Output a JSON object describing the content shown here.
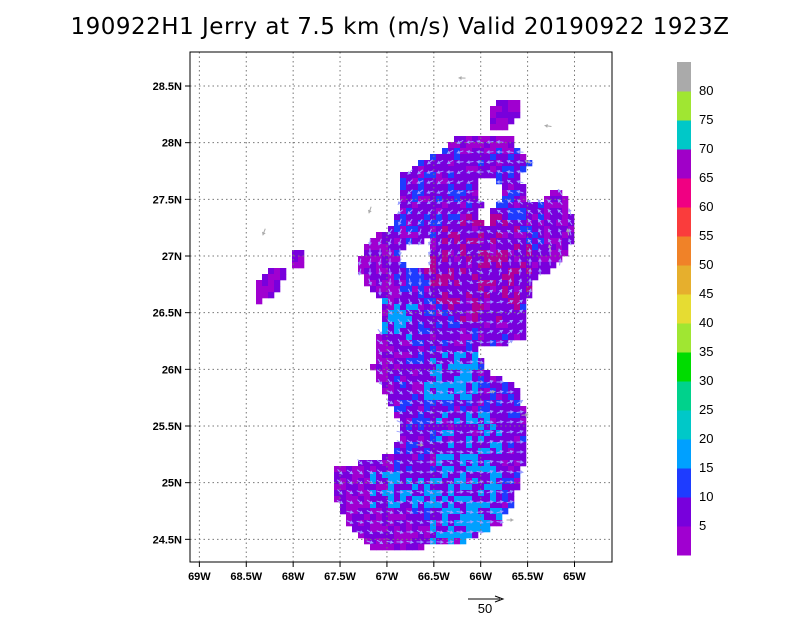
{
  "title": "190922H1 Jerry at 7.5 km (m/s) Valid 20190922  1923Z",
  "chart_data": {
    "type": "heatmap",
    "overlay": "wind-vectors",
    "xlim": [
      -69.1,
      -64.6
    ],
    "ylim": [
      24.3,
      28.8
    ],
    "x_ticks": [
      -69,
      -68.5,
      -68,
      -67.5,
      -67,
      -66.5,
      -66,
      -65.5,
      -65
    ],
    "x_tick_labels": [
      "69W",
      "68.5W",
      "68W",
      "67.5W",
      "67W",
      "66.5W",
      "66W",
      "65.5W",
      "65W"
    ],
    "y_ticks": [
      24.5,
      25,
      25.5,
      26,
      26.5,
      27,
      27.5,
      28,
      28.5
    ],
    "y_tick_labels": [
      "24.5N",
      "25N",
      "25.5N",
      "26N",
      "26.5N",
      "27N",
      "27.5N",
      "28N",
      "28.5N"
    ],
    "grid": true,
    "colorbar": {
      "levels": [
        5,
        10,
        15,
        20,
        25,
        30,
        35,
        40,
        45,
        50,
        55,
        60,
        65,
        70,
        75,
        80
      ],
      "labels": [
        "5",
        "10",
        "15",
        "20",
        "25",
        "30",
        "35",
        "40",
        "45",
        "50",
        "55",
        "60",
        "65",
        "70",
        "75",
        "80"
      ],
      "colors": [
        "#a000d0",
        "#7800dc",
        "#1e3cff",
        "#00a0ff",
        "#00c8c8",
        "#00d28c",
        "#00dc00",
        "#a0e632",
        "#e6dc32",
        "#e6af2d",
        "#f08228",
        "#fa3c3c",
        "#f00082",
        "#a000c8",
        "#00c8c8",
        "#a0e632",
        "#aaaaaa"
      ]
    },
    "reference_vector": {
      "label": "50",
      "value": 50
    },
    "vector_direction": "cyclonic (counter-clockwise) circulation centred near 66.0W 26.9N",
    "fill_colors": {
      "low": "#a000d0",
      "mid": "#7800dc",
      "blue": "#1e3cff",
      "light": "#00a0ff",
      "high": "#b40096"
    },
    "arrow_colors": {
      "in_fill": "#9aa0ff",
      "outside": "#aaaaaa"
    }
  }
}
